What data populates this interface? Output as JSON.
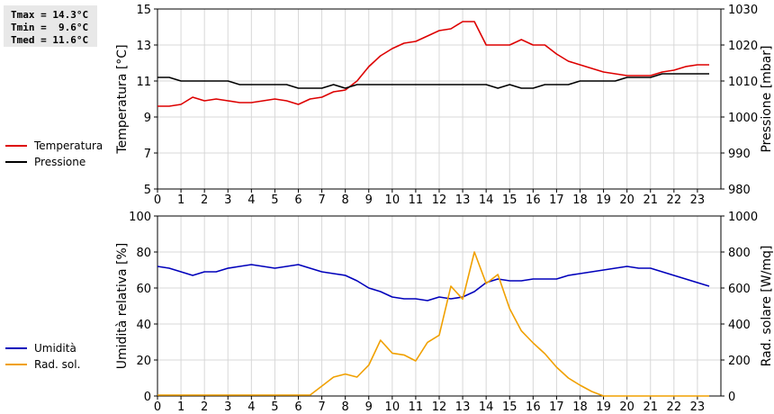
{
  "stats": {
    "tmax": "Tmax = 14.3°C",
    "tmin": "Tmin =  9.6°C",
    "tmed": "Tmed = 11.6°C"
  },
  "chart_data": [
    {
      "type": "line",
      "title": "",
      "xlabel": "",
      "xlim": [
        0,
        24
      ],
      "xticks": [
        0,
        1,
        2,
        3,
        4,
        5,
        6,
        7,
        8,
        9,
        10,
        11,
        12,
        13,
        14,
        15,
        16,
        17,
        18,
        19,
        20,
        21,
        22,
        23
      ],
      "grid": true,
      "legend_placement": "left",
      "left_axis": {
        "label": "Temperatura [°C]",
        "ylim": [
          5,
          15
        ],
        "ticks": [
          5,
          7,
          9,
          11,
          13,
          15
        ]
      },
      "right_axis": {
        "label": "Pressione [mbar]",
        "ylim": [
          980,
          1030
        ],
        "ticks": [
          980,
          990,
          1000,
          1010,
          1020,
          1030
        ]
      },
      "series": [
        {
          "name": "Temperatura",
          "axis": "left",
          "color": "#dd0000",
          "x": [
            0,
            0.5,
            1,
            1.5,
            2,
            2.5,
            3,
            3.5,
            4,
            4.5,
            5,
            5.5,
            6,
            6.5,
            7,
            7.5,
            8,
            8.5,
            9,
            9.5,
            10,
            10.5,
            11,
            11.5,
            12,
            12.5,
            13,
            13.5,
            14,
            14.5,
            15,
            15.5,
            16,
            16.5,
            17,
            17.5,
            18,
            18.5,
            19,
            19.5,
            20,
            20.5,
            21,
            21.5,
            22,
            22.5,
            23,
            23.5
          ],
          "values": [
            9.6,
            9.6,
            9.7,
            10.1,
            9.9,
            10.0,
            9.9,
            9.8,
            9.8,
            9.9,
            10.0,
            9.9,
            9.7,
            10.0,
            10.1,
            10.4,
            10.5,
            11.0,
            11.8,
            12.4,
            12.8,
            13.1,
            13.2,
            13.5,
            13.8,
            13.9,
            14.3,
            14.3,
            13.0,
            13.0,
            13.0,
            13.3,
            13.0,
            13.0,
            12.5,
            12.1,
            11.9,
            11.7,
            11.5,
            11.4,
            11.3,
            11.3,
            11.3,
            11.5,
            11.6,
            11.8,
            11.9,
            11.9
          ]
        },
        {
          "name": "Pressione",
          "axis": "right",
          "color": "#000000",
          "x": [
            0,
            0.5,
            1,
            1.5,
            2,
            2.5,
            3,
            3.5,
            4,
            4.5,
            5,
            5.5,
            6,
            6.5,
            7,
            7.5,
            8,
            8.5,
            9,
            9.5,
            10,
            10.5,
            11,
            11.5,
            12,
            12.5,
            13,
            13.5,
            14,
            14.5,
            15,
            15.5,
            16,
            16.5,
            17,
            17.5,
            18,
            18.5,
            19,
            19.5,
            20,
            20.5,
            21,
            21.5,
            22,
            22.5,
            23,
            23.5
          ],
          "values": [
            1011,
            1011,
            1010,
            1010,
            1010,
            1010,
            1010,
            1009,
            1009,
            1009,
            1009,
            1009,
            1008,
            1008,
            1008,
            1009,
            1008,
            1009,
            1009,
            1009,
            1009,
            1009,
            1009,
            1009,
            1009,
            1009,
            1009,
            1009,
            1009,
            1008,
            1009,
            1008,
            1008,
            1009,
            1009,
            1009,
            1010,
            1010,
            1010,
            1010,
            1011,
            1011,
            1011,
            1012,
            1012,
            1012,
            1012,
            1012
          ]
        }
      ]
    },
    {
      "type": "line",
      "title": "",
      "xlabel": "",
      "xlim": [
        0,
        24
      ],
      "xticks": [
        0,
        1,
        2,
        3,
        4,
        5,
        6,
        7,
        8,
        9,
        10,
        11,
        12,
        13,
        14,
        15,
        16,
        17,
        18,
        19,
        20,
        21,
        22,
        23
      ],
      "grid": true,
      "legend_placement": "left",
      "left_axis": {
        "label": "Umidità relativa [%]",
        "ylim": [
          0,
          100
        ],
        "ticks": [
          0,
          20,
          40,
          60,
          80,
          100
        ]
      },
      "right_axis": {
        "label": "Rad. solare [W/mq]",
        "ylim": [
          0,
          1000
        ],
        "ticks": [
          0,
          200,
          400,
          600,
          800,
          1000
        ]
      },
      "series": [
        {
          "name": "Umidità",
          "axis": "left",
          "color": "#0000bb",
          "x": [
            0,
            0.5,
            1,
            1.5,
            2,
            2.5,
            3,
            3.5,
            4,
            4.5,
            5,
            5.5,
            6,
            6.5,
            7,
            7.5,
            8,
            8.5,
            9,
            9.5,
            10,
            10.5,
            11,
            11.5,
            12,
            12.5,
            13,
            13.5,
            14,
            14.5,
            15,
            15.5,
            16,
            16.5,
            17,
            17.5,
            18,
            18.5,
            19,
            19.5,
            20,
            20.5,
            21,
            21.5,
            22,
            22.5,
            23,
            23.5
          ],
          "values": [
            72,
            71,
            69,
            67,
            69,
            69,
            71,
            72,
            73,
            72,
            71,
            72,
            73,
            71,
            69,
            68,
            67,
            64,
            60,
            58,
            55,
            54,
            54,
            53,
            55,
            54,
            55,
            58,
            63,
            65,
            64,
            64,
            65,
            65,
            65,
            67,
            68,
            69,
            70,
            71,
            72,
            71,
            71,
            69,
            67,
            65,
            63,
            61
          ]
        },
        {
          "name": "Rad. sol.",
          "axis": "right",
          "color": "#f0a000",
          "x": [
            0,
            0.5,
            1,
            1.5,
            2,
            2.5,
            3,
            3.5,
            4,
            4.5,
            5,
            5.5,
            6,
            6.5,
            7,
            7.5,
            8,
            8.5,
            9,
            9.5,
            10,
            10.5,
            11,
            11.5,
            12,
            12.5,
            13,
            13.5,
            14,
            14.5,
            15,
            15.5,
            16,
            16.5,
            17,
            17.5,
            18,
            18.5,
            19,
            19.5,
            20,
            20.5,
            21,
            21.5,
            22,
            22.5,
            23,
            23.5
          ],
          "values": [
            5,
            5,
            5,
            5,
            5,
            5,
            5,
            5,
            5,
            5,
            5,
            5,
            5,
            5,
            55,
            105,
            122,
            105,
            172,
            310,
            238,
            228,
            195,
            298,
            338,
            610,
            538,
            800,
            625,
            675,
            485,
            362,
            295,
            235,
            160,
            100,
            60,
            25,
            0,
            0,
            0,
            0,
            0,
            0,
            0,
            0,
            0,
            0
          ]
        }
      ]
    }
  ]
}
